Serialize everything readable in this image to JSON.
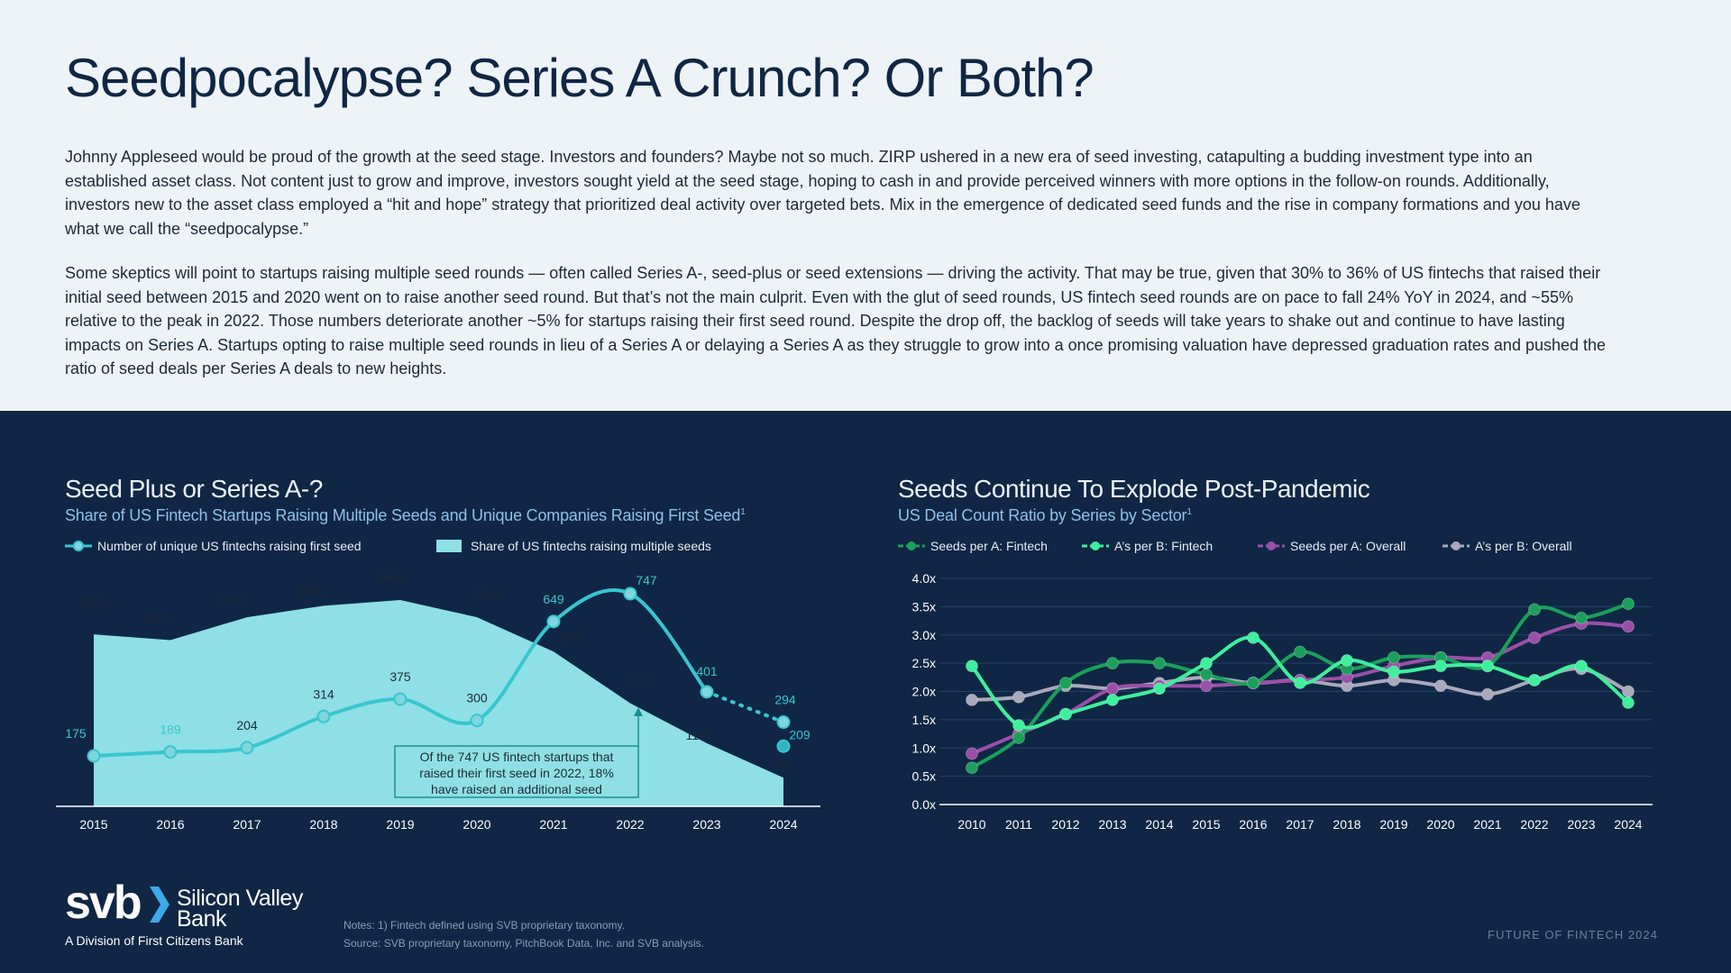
{
  "page": {
    "title": "Seedpocalypse? Series A Crunch? Or Both?",
    "para1": "Johnny Appleseed would be proud of the growth at the seed stage. Investors and founders? Maybe not so much. ZIRP ushered in a new era of seed investing, catapulting a budding investment type into an established asset class. Not content just to grow and improve, investors sought yield at the seed stage, hoping to cash in and provide perceived winners with more options in the follow-on rounds. Additionally, investors new to the asset class employed a “hit and hope” strategy that prioritized deal activity over targeted bets. Mix in the emergence of dedicated seed funds and the rise in company formations and you have what we call the “seedpocalypse.”",
    "para2": "Some skeptics will point to startups raising multiple seed rounds — often called Series A-, seed-plus or seed extensions — driving the activity. That may be true, given that 30% to 36% of US fintechs that raised their initial seed between 2015 and 2020 went on to raise another seed round. But that’s not the main culprit. Even with the glut of seed rounds, US fintech seed rounds are on pace to fall 24% YoY in 2024, and ~55% relative to the peak in 2022. Those numbers deteriorate another ~5% for startups raising their first seed round. Despite the drop off, the backlog of seeds will take years to shake out and continue to have lasting impacts on Series A. Startups opting to raise multiple seed rounds in lieu of a Series A or delaying a Series A as they struggle to grow into a once promising valuation have depressed graduation rates and pushed the ratio of seed deals per Series A deals to new heights."
  },
  "colors": {
    "teal_area": "#8ee0e4",
    "teal_line": "#38c6cf",
    "fintech_seeds": "#1aa05a",
    "fintech_as": "#3eef9c",
    "overall_seeds": "#9b4fa8",
    "overall_as": "#a9a9bb",
    "navy": "#0f2744"
  },
  "chart_data": [
    {
      "type": "line",
      "title": "Seed Plus or Series A-?",
      "subtitle": "Share of US Fintech Startups Raising Multiple Seeds and Unique Companies Raising First Seed",
      "subtitle_sup": "1",
      "categories": [
        "2015",
        "2016",
        "2017",
        "2018",
        "2019",
        "2020",
        "2021",
        "2022",
        "2023",
        "2024"
      ],
      "series": [
        {
          "name": "Number of unique US fintechs raising first seed",
          "kind": "line",
          "values": [
            175,
            189,
            204,
            314,
            375,
            300,
            649,
            747,
            401,
            294
          ],
          "projected": {
            "x": "2024",
            "value": 209
          }
        },
        {
          "name": "Share of US fintechs raising multiple seeds",
          "kind": "area",
          "values": [
            30,
            29,
            33,
            35,
            36,
            33,
            27,
            18,
            11,
            5
          ],
          "labels": [
            "30%",
            "29%",
            "33%",
            "35%",
            "36%",
            "33%",
            "27%",
            "18%",
            "11%",
            "5%"
          ]
        }
      ],
      "annotation": "Of the 747 US fintech startups that raised their first seed in 2022, 18% have raised an additional seed"
    },
    {
      "type": "line",
      "title": "Seeds Continue To Explode Post-Pandemic",
      "subtitle": "US Deal Count Ratio by Series by Sector",
      "subtitle_sup": "1",
      "categories": [
        "2010",
        "2011",
        "2012",
        "2013",
        "2014",
        "2015",
        "2016",
        "2017",
        "2018",
        "2019",
        "2020",
        "2021",
        "2022",
        "2023",
        "2024"
      ],
      "ylim": [
        0,
        4
      ],
      "yticks": [
        "0.0x",
        "0.5x",
        "1.0x",
        "1.5x",
        "2.0x",
        "2.5x",
        "3.0x",
        "3.5x",
        "4.0x"
      ],
      "series": [
        {
          "name": "Seeds per A: Fintech",
          "values": [
            0.65,
            1.18,
            2.15,
            2.5,
            2.5,
            2.3,
            2.15,
            2.7,
            2.4,
            2.6,
            2.6,
            2.45,
            3.45,
            3.3,
            3.55
          ]
        },
        {
          "name": "A’s per B: Fintech",
          "values": [
            2.45,
            1.4,
            1.6,
            1.85,
            2.05,
            2.5,
            2.95,
            2.15,
            2.55,
            2.35,
            2.45,
            2.45,
            2.2,
            2.45,
            1.8
          ]
        },
        {
          "name": "Seeds per A: Overall",
          "values": [
            0.9,
            1.25,
            1.6,
            2.05,
            2.1,
            2.1,
            2.15,
            2.2,
            2.25,
            2.45,
            2.6,
            2.6,
            2.95,
            3.2,
            3.15
          ]
        },
        {
          "name": "A’s per B: Overall",
          "values": [
            1.85,
            1.9,
            2.1,
            2.05,
            2.15,
            2.25,
            2.15,
            2.2,
            2.1,
            2.2,
            2.1,
            1.95,
            2.2,
            2.4,
            2.0
          ]
        }
      ]
    }
  ],
  "logo": {
    "mark": "svb",
    "name": "Silicon Valley Bank",
    "division": "A Division of First Citizens Bank"
  },
  "notes": {
    "line1": "Notes: 1) Fintech defined using SVB proprietary taxonomy.",
    "line2": "Source: SVB proprietary taxonomy, PitchBook Data, Inc. and SVB analysis."
  },
  "footer": "FUTURE OF FINTECH 2024"
}
